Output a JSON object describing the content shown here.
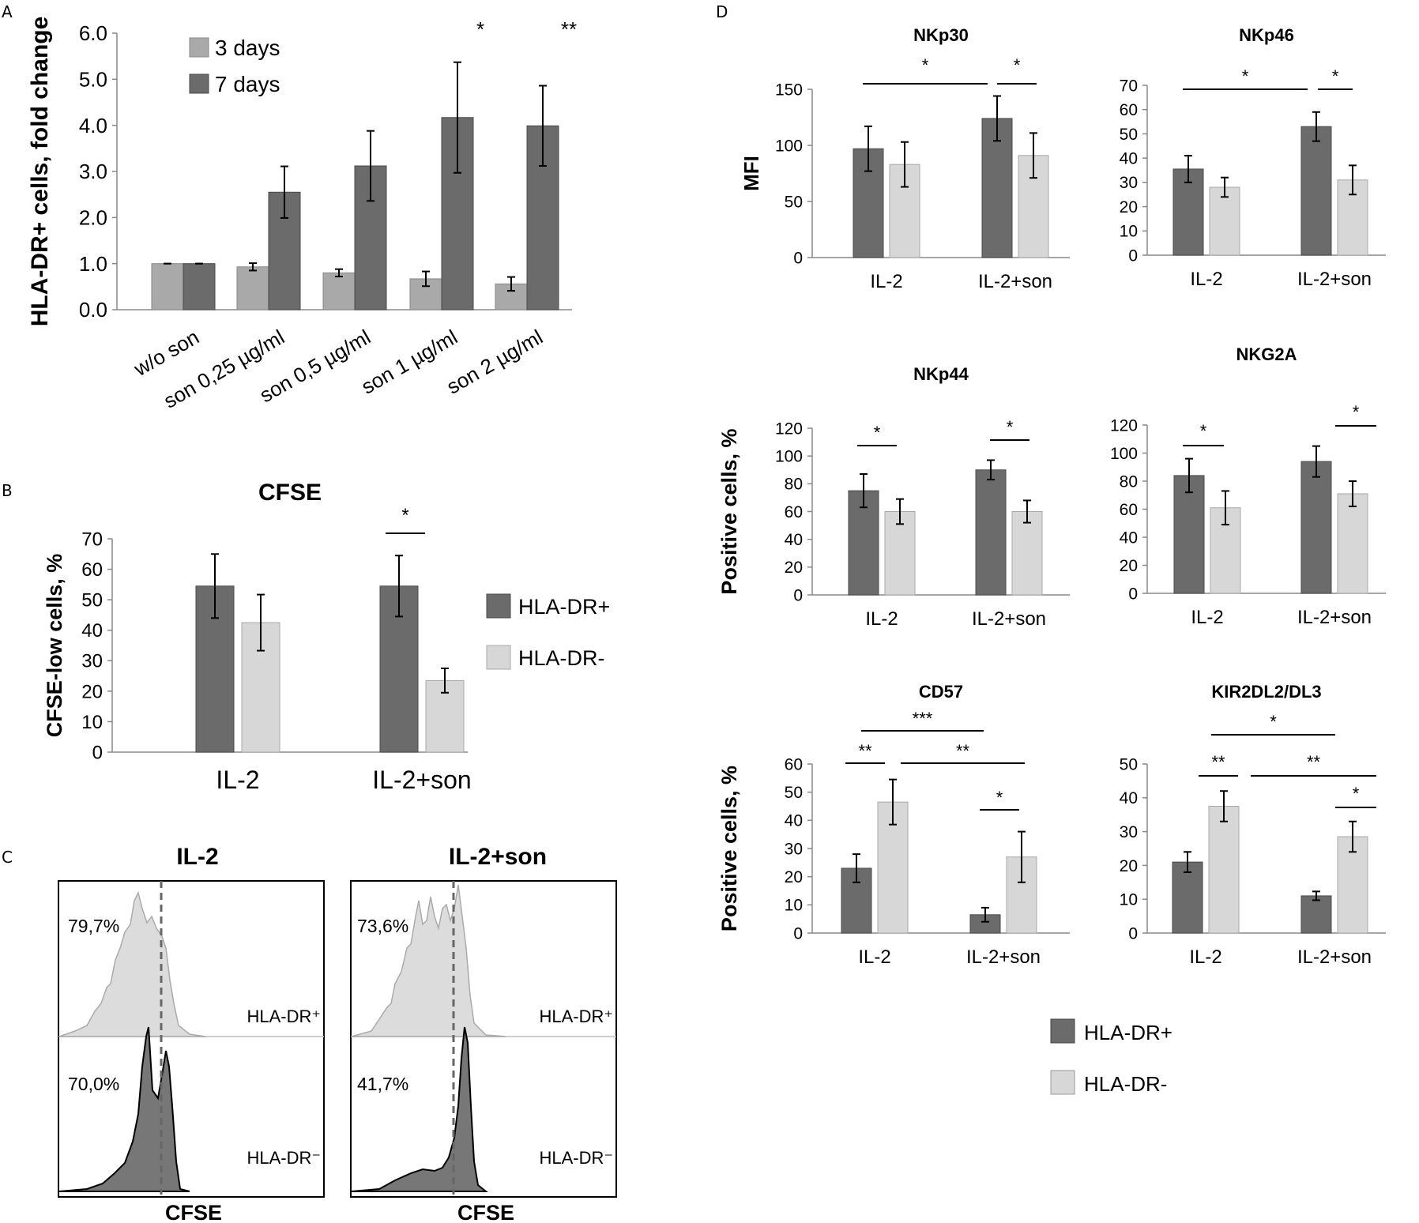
{
  "colors": {
    "dark": "#6b6b6b",
    "light": "#d7d7d7",
    "mid": "#a9a9a9",
    "axis": "#888888",
    "hist_light": "#dcdcdc",
    "hist_dark": "#777777"
  },
  "panels": {
    "a": "A",
    "b": "B",
    "c": "C",
    "d": "D"
  },
  "chart_data": [
    {
      "id": "A",
      "type": "bar",
      "title": "",
      "ylabel": "HLA-DR+ cells, fold change",
      "ylim": [
        0,
        6
      ],
      "yticks": [
        "0.0",
        "1.0",
        "2.0",
        "3.0",
        "4.0",
        "5.0",
        "6.0"
      ],
      "categories": [
        "w/o  son",
        "son 0,25 µg/ml",
        "son 0,5 µg/ml",
        "son 1 µg/ml",
        "son 2  µg/ml"
      ],
      "series": [
        {
          "name": "3 days",
          "values": [
            1.0,
            0.93,
            0.8,
            0.67,
            0.56
          ],
          "errors": [
            0.0,
            0.08,
            0.08,
            0.16,
            0.15
          ]
        },
        {
          "name": "7 days",
          "values": [
            1.0,
            2.55,
            3.12,
            4.17,
            3.99
          ],
          "errors": [
            0.0,
            0.56,
            0.76,
            1.2,
            0.87
          ]
        }
      ],
      "sig": [
        "",
        "",
        "",
        "*",
        "**"
      ]
    },
    {
      "id": "B",
      "type": "bar",
      "title": "CFSE",
      "ylabel": "CFSE-low  cells, %",
      "ylim": [
        0,
        70
      ],
      "yticks": [
        "0",
        "10",
        "20",
        "30",
        "40",
        "50",
        "60",
        "70"
      ],
      "categories": [
        "IL-2",
        "IL-2+son"
      ],
      "series": [
        {
          "name": "HLA-DR+",
          "values": [
            54.5,
            54.5
          ],
          "errors": [
            10.5,
            10
          ]
        },
        {
          "name": "HLA-DR-",
          "values": [
            42.5,
            23.5
          ],
          "errors": [
            9.2,
            4
          ]
        }
      ],
      "sig": [
        "*"
      ],
      "legend": [
        "HLA-DR+",
        "HLA-DR-"
      ]
    },
    {
      "id": "NKp30",
      "type": "bar",
      "title": "NKp30",
      "ylabel": "MFI",
      "ylim": [
        0,
        150
      ],
      "yticks": [
        "0",
        "50",
        "100",
        "150"
      ],
      "categories": [
        "IL-2",
        "IL-2+son"
      ],
      "series": [
        {
          "name": "HLA-DR+",
          "values": [
            97,
            124
          ],
          "errors": [
            20,
            20
          ]
        },
        {
          "name": "HLA-DR-",
          "values": [
            83,
            91
          ],
          "errors": [
            20,
            20
          ]
        }
      ],
      "sig": [
        "*",
        "*"
      ]
    },
    {
      "id": "NKp46",
      "type": "bar",
      "title": "NKp46",
      "ylabel": "",
      "ylim": [
        0,
        70
      ],
      "yticks": [
        "0",
        "10",
        "20",
        "30",
        "40",
        "50",
        "60",
        "70"
      ],
      "categories": [
        "IL-2",
        "IL-2+son"
      ],
      "series": [
        {
          "name": "HLA-DR+",
          "values": [
            35.5,
            53
          ],
          "errors": [
            5.5,
            6
          ]
        },
        {
          "name": "HLA-DR-",
          "values": [
            28,
            31
          ],
          "errors": [
            4,
            6
          ]
        }
      ],
      "sig": [
        "*",
        "*"
      ]
    },
    {
      "id": "NKp44",
      "type": "bar",
      "title": "NKp44",
      "ylabel": "Positive cells, %",
      "ylim": [
        0,
        120
      ],
      "yticks": [
        "0",
        "20",
        "40",
        "60",
        "80",
        "100",
        "120"
      ],
      "categories": [
        "IL-2",
        "IL-2+son"
      ],
      "series": [
        {
          "name": "HLA-DR+",
          "values": [
            75,
            90
          ],
          "errors": [
            12,
            7
          ]
        },
        {
          "name": "HLA-DR-",
          "values": [
            60,
            60
          ],
          "errors": [
            9,
            8
          ]
        }
      ],
      "sig": [
        "*",
        "*"
      ]
    },
    {
      "id": "NKG2A",
      "type": "bar",
      "title": "NKG2A",
      "ylabel": "",
      "ylim": [
        0,
        120
      ],
      "yticks": [
        "0",
        "20",
        "40",
        "60",
        "80",
        "100",
        "120"
      ],
      "categories": [
        "IL-2",
        "IL-2+son"
      ],
      "series": [
        {
          "name": "HLA-DR+",
          "values": [
            84,
            94
          ],
          "errors": [
            12,
            11
          ]
        },
        {
          "name": "HLA-DR-",
          "values": [
            61,
            71
          ],
          "errors": [
            12,
            9
          ]
        }
      ],
      "sig": [
        "*",
        "*"
      ]
    },
    {
      "id": "CD57",
      "type": "bar",
      "title": "CD57",
      "ylabel": "Positive cells, %",
      "ylim": [
        0,
        60
      ],
      "yticks": [
        "0",
        "10",
        "20",
        "30",
        "40",
        "50",
        "60"
      ],
      "categories": [
        "IL-2",
        "IL-2+son"
      ],
      "series": [
        {
          "name": "HLA-DR+",
          "values": [
            23,
            6.5
          ],
          "errors": [
            5,
            2.5
          ]
        },
        {
          "name": "HLA-DR-",
          "values": [
            46.5,
            27
          ],
          "errors": [
            8,
            9
          ]
        }
      ],
      "sig": [
        "***",
        "**",
        "**",
        "*"
      ]
    },
    {
      "id": "KIR2DL2/DL3",
      "type": "bar",
      "title": "KIR2DL2/DL3",
      "ylabel": "",
      "ylim": [
        0,
        50
      ],
      "yticks": [
        "0",
        "10",
        "20",
        "30",
        "40",
        "50"
      ],
      "categories": [
        "IL-2",
        "IL-2+son"
      ],
      "series": [
        {
          "name": "HLA-DR+",
          "values": [
            21,
            11
          ],
          "errors": [
            3,
            1.3
          ]
        },
        {
          "name": "HLA-DR-",
          "values": [
            37.5,
            28.5
          ],
          "errors": [
            4.5,
            4.5
          ]
        }
      ],
      "sig": [
        "*",
        "**",
        "**",
        "*"
      ]
    }
  ],
  "legend_d": [
    "HLA-DR+",
    "HLA-DR-"
  ],
  "histograms": [
    {
      "title": "IL-2",
      "top_pct": "79,7%",
      "bottom_pct": "70,0%",
      "top_label": "HLA-DR⁺",
      "bottom_label": "HLA-DR⁻",
      "xlabel": "CFSE"
    },
    {
      "title": "IL-2+son",
      "top_pct": "73,6%",
      "bottom_pct": "41,7%",
      "top_label": "HLA-DR⁺",
      "bottom_label": "HLA-DR⁻",
      "xlabel": "CFSE"
    }
  ]
}
